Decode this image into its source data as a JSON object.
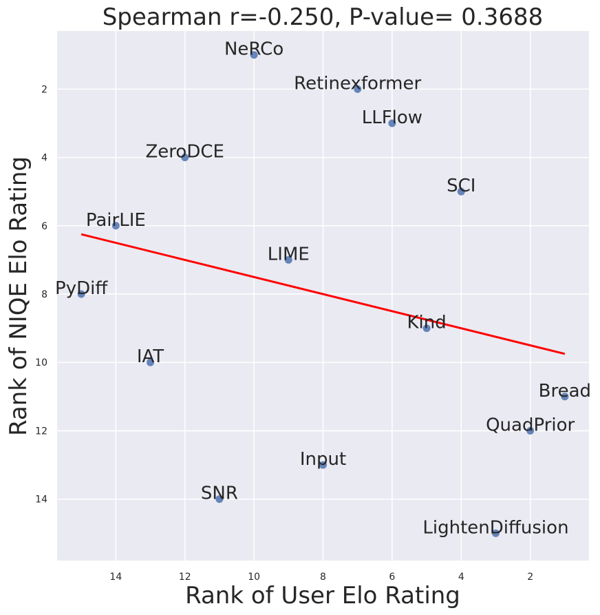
{
  "chart_data": {
    "type": "scatter",
    "title": "Spearman r=-0.250, P-value= 0.3688",
    "xlabel": "Rank of User Elo Rating",
    "ylabel": "Rank of NIQE Elo Rating",
    "x_inverted": true,
    "y_inverted": true,
    "xlim": [
      15.7,
      0.3
    ],
    "ylim": [
      15.8,
      0.3
    ],
    "xticks": [
      14,
      12,
      10,
      8,
      6,
      4,
      2
    ],
    "yticks": [
      2,
      4,
      6,
      8,
      10,
      12,
      14
    ],
    "grid": true,
    "points": [
      {
        "label": "NeRCo",
        "x": 10,
        "y": 1
      },
      {
        "label": "Retinexformer",
        "x": 7,
        "y": 2
      },
      {
        "label": "LLFlow",
        "x": 6,
        "y": 3
      },
      {
        "label": "ZeroDCE",
        "x": 12,
        "y": 4
      },
      {
        "label": "SCI",
        "x": 4,
        "y": 5
      },
      {
        "label": "PairLIE",
        "x": 14,
        "y": 6
      },
      {
        "label": "LIME",
        "x": 9,
        "y": 7
      },
      {
        "label": "PyDiff",
        "x": 15,
        "y": 8
      },
      {
        "label": "Kind",
        "x": 5,
        "y": 9
      },
      {
        "label": "IAT",
        "x": 13,
        "y": 10
      },
      {
        "label": "Bread",
        "x": 1,
        "y": 11
      },
      {
        "label": "QuadPrior",
        "x": 2,
        "y": 12
      },
      {
        "label": "Input",
        "x": 8,
        "y": 13
      },
      {
        "label": "SNR",
        "x": 11,
        "y": 14
      },
      {
        "label": "LightenDiffusion",
        "x": 3,
        "y": 15
      }
    ],
    "regression": {
      "x_start": 15,
      "y_start": 6.25,
      "x_end": 1,
      "y_end": 9.75
    },
    "colors": {
      "background": "#eaeaf2",
      "grid": "#ffffff",
      "point": "#4c72b0",
      "regression": "#ff0000",
      "text": "#262626"
    }
  }
}
